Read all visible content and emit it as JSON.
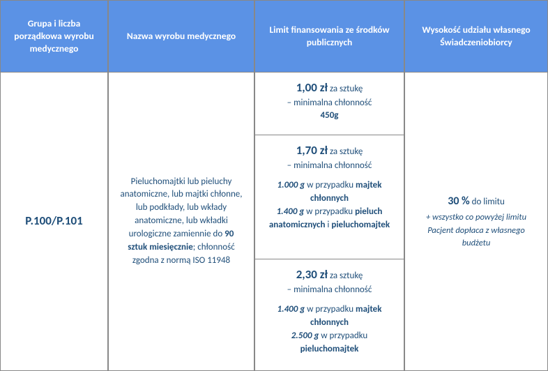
{
  "headers": {
    "col1": "Grupa i liczba porządkowa wyrobu medycznego",
    "col2": "Nazwa wyrobu medycznego",
    "col3": "Limit finansowania ze środków publicznych",
    "col4": "Wysokość udziału własnego Świadczeniobiorcy"
  },
  "code": "P.100/P.101",
  "product": {
    "pre": "Pieluchomajtki lub pieluchy anatomiczne, lub majtki chłonne, lub podkłady, lub wkłady anatomiczne, lub wkładki urologiczne zamiennie do ",
    "bold": "90 sztuk miesięcznie",
    "post": "; chłonność zgodna z normą ISO 11948"
  },
  "tiers": [
    {
      "price": "1,00 zł",
      "per": " za sztukę",
      "sub": "– minimalna chłonność",
      "g1": "450g"
    },
    {
      "price": "1,70 zł",
      "per": " za sztukę",
      "sub": "– minimalna chłonność",
      "g1": "1.000 g",
      "c1a": " w przypadku ",
      "c1b": "majtek chłonnych",
      "g2": "1.400 g",
      "c2a": " w przypadku ",
      "c2b": "pieluch anatomicznych",
      "c2c": " i ",
      "c2d": "pieluchomajtek"
    },
    {
      "price": "2,30 zł",
      "per": " za sztukę",
      "sub": "– minimalna chłonność",
      "g1": "1.400 g",
      "c1a": " w przypadku ",
      "c1b": "majtek chłonnych",
      "g2": "2.500 g",
      "c2a": " w przypadku ",
      "c2b": "pieluchomajtek"
    }
  ],
  "share": {
    "pct": "30 %",
    "to": " do limitu",
    "note": "+ wszystko co powyżej limitu Pacjent dopłaca z własnego budżetu"
  },
  "colors": {
    "header_bg": "#5b92e5",
    "header_text": "#ffffff",
    "body_text": "#1f4e79",
    "border": "#888888"
  }
}
